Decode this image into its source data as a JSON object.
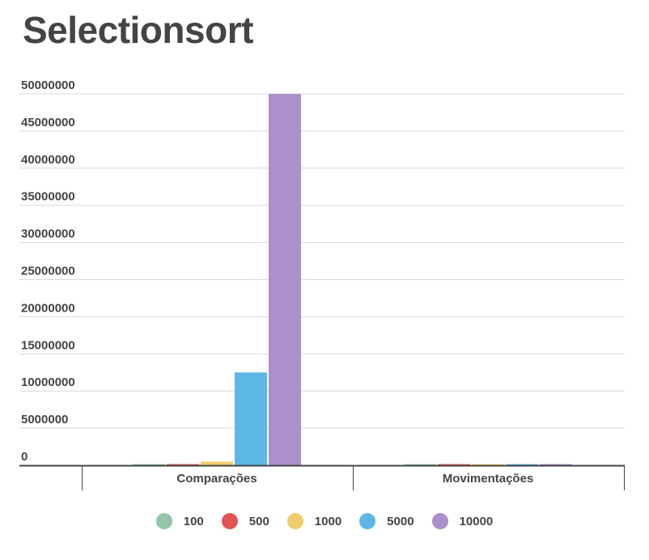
{
  "chart_data": {
    "type": "bar",
    "title": "Selectionsort",
    "categories": [
      "Comparações",
      "Movimentações"
    ],
    "series": [
      {
        "name": "100",
        "color": "#93c5a8",
        "values": [
          4950,
          99
        ]
      },
      {
        "name": "500",
        "color": "#e05454",
        "values": [
          124750,
          499
        ]
      },
      {
        "name": "1000",
        "color": "#efcd6a",
        "values": [
          499500,
          999
        ]
      },
      {
        "name": "5000",
        "color": "#5cb7e4",
        "values": [
          12497500,
          4999
        ]
      },
      {
        "name": "10000",
        "color": "#ab90cb",
        "values": [
          49995000,
          9999
        ]
      }
    ],
    "ylim": [
      0,
      50000000
    ],
    "yticks": [
      "0",
      "5000000",
      "10000000",
      "15000000",
      "20000000",
      "25000000",
      "30000000",
      "35000000",
      "40000000",
      "45000000",
      "50000000"
    ],
    "grid": true,
    "legend_position": "bottom"
  }
}
